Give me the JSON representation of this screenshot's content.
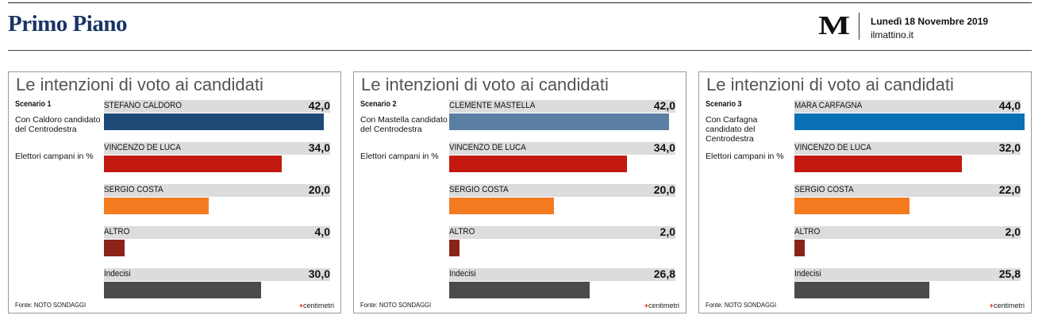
{
  "header": {
    "brand": "Primo Piano",
    "logo": "M",
    "date": "Lunedì 18 Novembre 2019",
    "site": "ilmattino.it"
  },
  "colors": {
    "centrodestra1": "#1f4a77",
    "centrodestra2": "#5b7ea3",
    "centrodestra3": "#0a70b5",
    "deluca": "#c4190f",
    "costa": "#f47b20",
    "altro": "#8b2418",
    "indecisi": "#4b4b4b"
  },
  "chart_data": [
    {
      "type": "bar",
      "title": "Le intenzioni di voto ai candidati",
      "scenario": "Scenario 1",
      "description": "Con Caldoro candidato del Centrodestra",
      "unit_label": "Elettori campani in %",
      "source": "Fonte: NOTO SONDAGGI",
      "credit": "centimetri",
      "categories": [
        "STEFANO CALDORO",
        "VINCENZO DE LUCA",
        "SERGIO COSTA",
        "ALTRO",
        "Indecisi"
      ],
      "values": [
        42.0,
        34.0,
        20.0,
        4.0,
        30.0
      ],
      "labels": [
        "42,0",
        "34,0",
        "20,0",
        "4,0",
        "30,0"
      ],
      "bar_colors": [
        "#1f4a77",
        "#c4190f",
        "#f47b20",
        "#8b2418",
        "#4b4b4b"
      ]
    },
    {
      "type": "bar",
      "title": "Le intenzioni di voto ai candidati",
      "scenario": "Scenario 2",
      "description": "Con Mastella candidato del Centrodestra",
      "unit_label": "Elettori campani in %",
      "source": "Fonte: NOTO SONDAGGI",
      "credit": "centimetri",
      "categories": [
        "CLEMENTE MASTELLA",
        "VINCENZO DE LUCA",
        "SERGIO COSTA",
        "ALTRO",
        "Indecisi"
      ],
      "values": [
        42.0,
        34.0,
        20.0,
        2.0,
        26.8
      ],
      "labels": [
        "42,0",
        "34,0",
        "20,0",
        "2,0",
        "26,8"
      ],
      "bar_colors": [
        "#5b7ea3",
        "#c4190f",
        "#f47b20",
        "#8b2418",
        "#4b4b4b"
      ]
    },
    {
      "type": "bar",
      "title": "Le intenzioni di voto ai candidati",
      "scenario": "Scenario 3",
      "description": "Con Carfagna candidato del Centrodestra",
      "unit_label": "Elettori campani in %",
      "source": "Fonte: NOTO SONDAGGI",
      "credit": "centimetri",
      "categories": [
        "MARA CARFAGNA",
        "VINCENZO DE LUCA",
        "SERGIO COSTA",
        "ALTRO",
        "Indecisi"
      ],
      "values": [
        44.0,
        32.0,
        22.0,
        2.0,
        25.8
      ],
      "labels": [
        "44,0",
        "32,0",
        "22,0",
        "2,0",
        "25,8"
      ],
      "bar_colors": [
        "#0a70b5",
        "#c4190f",
        "#f47b20",
        "#8b2418",
        "#4b4b4b"
      ]
    }
  ]
}
